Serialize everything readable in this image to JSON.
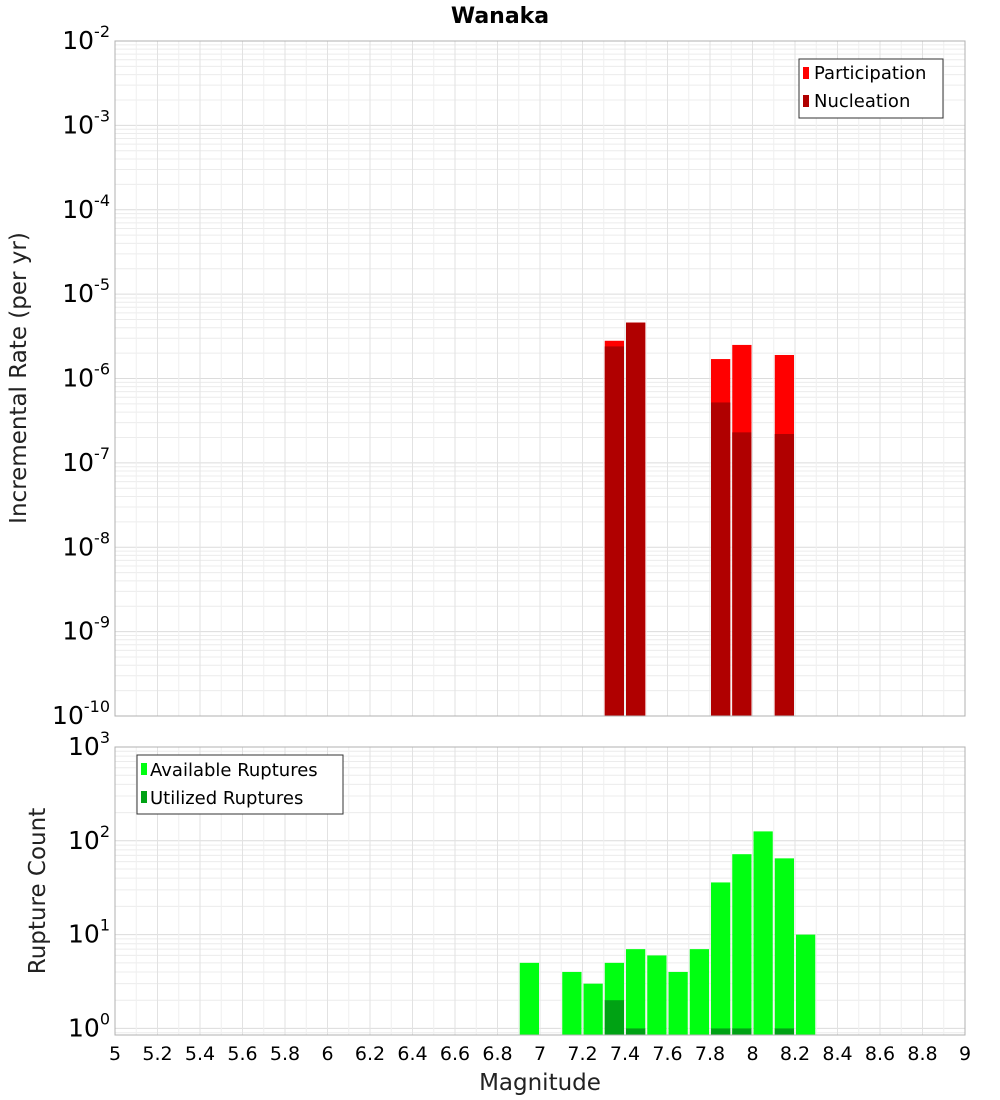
{
  "title": "Wanaka",
  "colors": {
    "participation": "#ff0000",
    "nucleation": "#b00000",
    "available": "#00ff11",
    "utilized": "#00a214",
    "grid": "#e6e6e6",
    "frame": "#b0b0b0"
  },
  "chart_data": [
    {
      "type": "bar",
      "title": "Wanaka",
      "xlabel": "Magnitude",
      "ylabel": "Incremental Rate (per yr)",
      "yscale": "log",
      "xlim": [
        5,
        9
      ],
      "ylim_exp": [
        -10,
        -2
      ],
      "y_tick_exponents": [
        -10,
        -9,
        -8,
        -7,
        -6,
        -5,
        -4,
        -3,
        -2
      ],
      "bin_width": 0.1,
      "legend_position": "top-right",
      "series": [
        {
          "name": "Participation",
          "color_key": "participation",
          "points": [
            [
              7.35,
              2.8e-06
            ],
            [
              7.45,
              4.6e-06
            ],
            [
              7.85,
              1.7e-06
            ],
            [
              7.95,
              2.5e-06
            ],
            [
              8.15,
              1.9e-06
            ]
          ]
        },
        {
          "name": "Nucleation",
          "color_key": "nucleation",
          "points": [
            [
              7.35,
              2.4e-06
            ],
            [
              7.45,
              4.6e-06
            ],
            [
              7.85,
              5.2e-07
            ],
            [
              7.95,
              2.3e-07
            ],
            [
              8.15,
              2.2e-07
            ]
          ]
        }
      ]
    },
    {
      "type": "bar",
      "xlabel": "Magnitude",
      "ylabel": "Rupture Count",
      "yscale": "log",
      "xlim": [
        5,
        9
      ],
      "ylim_exp": [
        -0.07,
        3
      ],
      "y_tick_exponents": [
        0,
        1,
        2,
        3
      ],
      "bin_width": 0.1,
      "legend_position": "top-left",
      "series": [
        {
          "name": "Available Ruptures",
          "color_key": "available",
          "points": [
            [
              6.95,
              5
            ],
            [
              7.15,
              4
            ],
            [
              7.25,
              3
            ],
            [
              7.35,
              5
            ],
            [
              7.45,
              7
            ],
            [
              7.55,
              6
            ],
            [
              7.65,
              4
            ],
            [
              7.75,
              7
            ],
            [
              7.85,
              36
            ],
            [
              7.95,
              72
            ],
            [
              8.05,
              126
            ],
            [
              8.15,
              65
            ],
            [
              8.25,
              10
            ]
          ]
        },
        {
          "name": "Utilized Ruptures",
          "color_key": "utilized",
          "points": [
            [
              7.35,
              2
            ],
            [
              7.45,
              1
            ],
            [
              7.85,
              1
            ],
            [
              7.95,
              1
            ],
            [
              8.15,
              1
            ]
          ]
        }
      ]
    }
  ],
  "x_ticks": [
    5,
    5.2,
    5.4,
    5.6,
    5.8,
    6,
    6.2,
    6.4,
    6.6,
    6.8,
    7,
    7.2,
    7.4,
    7.6,
    7.8,
    8,
    8.2,
    8.4,
    8.6,
    8.8,
    9
  ]
}
